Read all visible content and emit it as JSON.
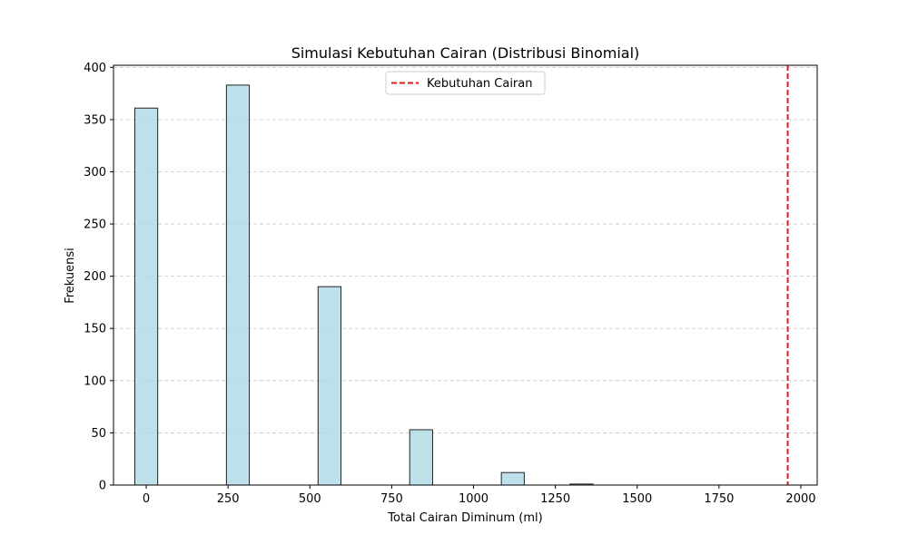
{
  "chart_data": {
    "type": "bar",
    "title": "Simulasi Kebutuhan Cairan (Distribusi Binomial)",
    "xlabel": "Total Cairan Diminum (ml)",
    "ylabel": "Frekuensi",
    "xlim": [
      -100,
      2050
    ],
    "ylim": [
      0,
      402
    ],
    "x_ticks": [
      0,
      250,
      500,
      750,
      1000,
      1250,
      1500,
      1750,
      2000
    ],
    "y_ticks": [
      0,
      50,
      100,
      150,
      200,
      250,
      300,
      350,
      400
    ],
    "bin_width": 70,
    "bars": [
      {
        "x": 0,
        "value": 361
      },
      {
        "x": 280,
        "value": 383
      },
      {
        "x": 560,
        "value": 190
      },
      {
        "x": 840,
        "value": 53
      },
      {
        "x": 1120,
        "value": 12
      },
      {
        "x": 1330,
        "value": 1
      }
    ],
    "reference_line": {
      "x": 1960,
      "label": "Kebutuhan Cairan",
      "color": "#e31a1c",
      "style": "dashed"
    },
    "grid": {
      "y": true,
      "x": false,
      "style": "dashed"
    },
    "legend": {
      "placement": "top-center",
      "entries": [
        "Kebutuhan Cairan"
      ]
    },
    "colors": {
      "bar_fill": "#add8e6",
      "bar_edge": "#222222",
      "grid": "#c8c8c8",
      "reference": "#e31a1c"
    }
  }
}
